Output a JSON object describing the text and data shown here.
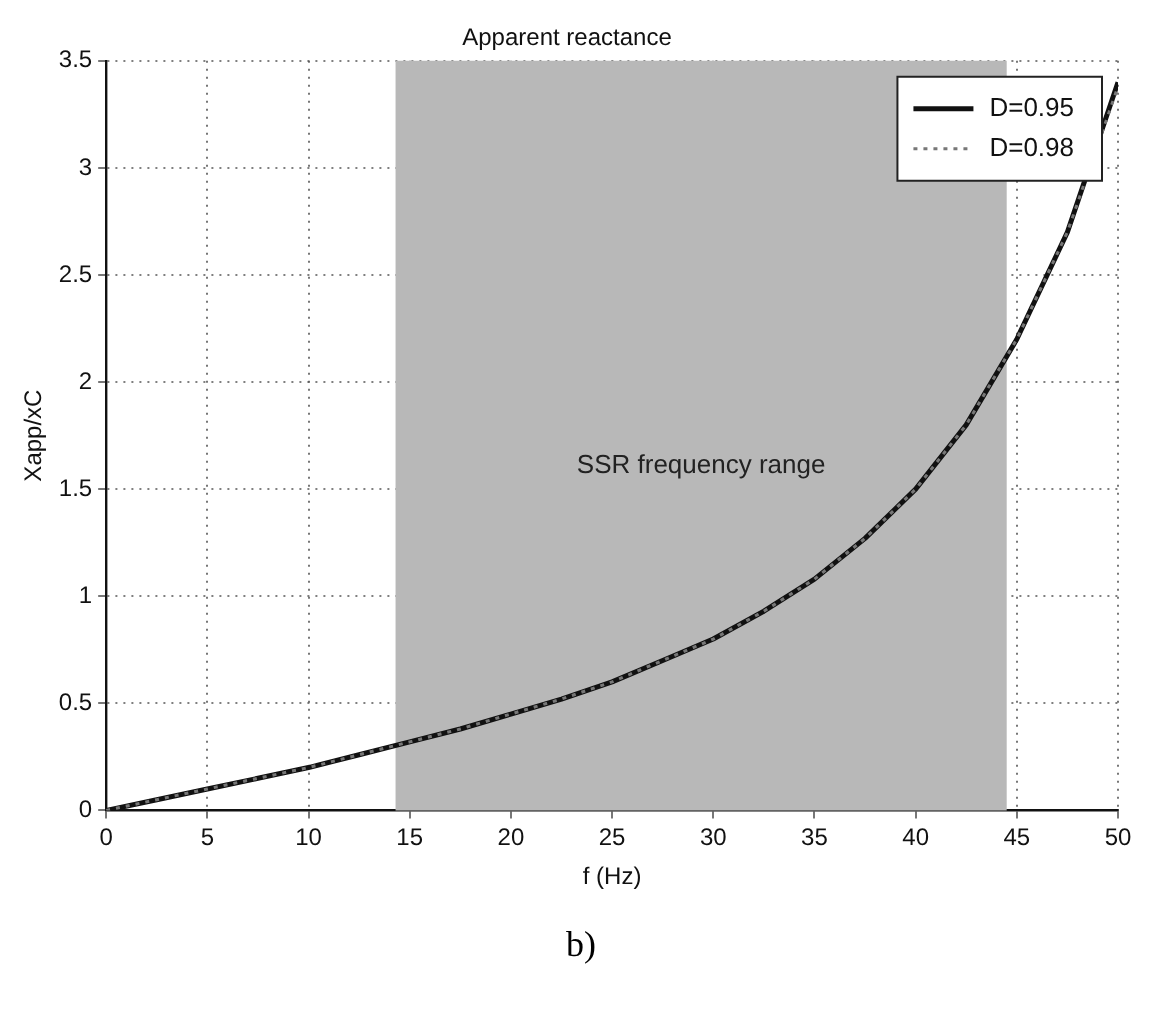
{
  "chart_data": {
    "type": "line",
    "title": "Apparent reactance",
    "xlabel": "f (Hz)",
    "ylabel": "Xapp/xC",
    "x": [
      0,
      2.5,
      5,
      7.5,
      10,
      12.5,
      15,
      17.5,
      20,
      22.5,
      25,
      27.5,
      30,
      32.5,
      35,
      37.5,
      40,
      42.5,
      45,
      47.5,
      50
    ],
    "series": [
      {
        "name": "D=0.95",
        "color": "#111111",
        "line_style": "solid",
        "values": [
          0,
          0.05,
          0.1,
          0.15,
          0.2,
          0.26,
          0.32,
          0.38,
          0.45,
          0.52,
          0.6,
          0.7,
          0.8,
          0.93,
          1.08,
          1.27,
          1.5,
          1.8,
          2.2,
          2.7,
          3.4
        ]
      },
      {
        "name": "D=0.98",
        "color": "#777777",
        "line_style": "dotted",
        "values": [
          0,
          0.05,
          0.1,
          0.15,
          0.2,
          0.26,
          0.32,
          0.38,
          0.45,
          0.52,
          0.6,
          0.7,
          0.8,
          0.93,
          1.08,
          1.27,
          1.5,
          1.8,
          2.2,
          2.7,
          3.38
        ]
      }
    ],
    "xlim": [
      0,
      50
    ],
    "xticks": [
      0,
      5,
      10,
      15,
      20,
      25,
      30,
      35,
      40,
      45,
      50
    ],
    "ylim": [
      0,
      3.5
    ],
    "yticks": [
      0,
      0.5,
      1,
      1.5,
      2,
      2.5,
      3,
      3.5
    ],
    "bands": [
      {
        "axis": "x",
        "from": 14.3,
        "to": 44.5,
        "label": "SSR frequency range",
        "color": "#b8b8b8"
      }
    ],
    "annotations": [
      "b)"
    ],
    "grid": true,
    "legend": "top right",
    "marker": "none"
  }
}
